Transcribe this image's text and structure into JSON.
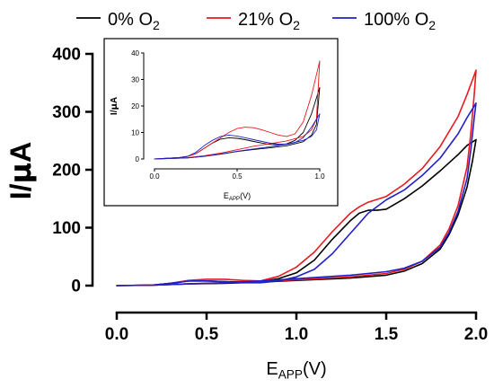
{
  "chart_data": [
    {
      "id": "main",
      "type": "line",
      "ylabel_main": "I/",
      "ylabel_mu": "μ",
      "ylabel_unit": "A",
      "xlabel_main": "E",
      "xlabel_sub": "APP",
      "xlabel_unit": "(V)",
      "xlim": [
        0,
        2.0
      ],
      "ylim": [
        0,
        400
      ],
      "xticks": [
        0.0,
        0.5,
        1.0,
        1.5,
        2.0
      ],
      "xtick_labels": [
        "0.0",
        "0.5",
        "1.0",
        "1.5",
        "2.0"
      ],
      "yticks": [
        0,
        100,
        200,
        300,
        400
      ],
      "ytick_labels": [
        "0",
        "100",
        "200",
        "300",
        "400"
      ],
      "grid": false,
      "legend_position": "top",
      "series": [
        {
          "legend_prefix": "0% O",
          "legend_sub": "2",
          "color": "#000000",
          "forward": [
            [
              0,
              0
            ],
            [
              0.2,
              1
            ],
            [
              0.3,
              4
            ],
            [
              0.4,
              8
            ],
            [
              0.5,
              8
            ],
            [
              0.6,
              7
            ],
            [
              0.7,
              6
            ],
            [
              0.8,
              7
            ],
            [
              0.9,
              12
            ],
            [
              1.0,
              22
            ],
            [
              1.1,
              44
            ],
            [
              1.2,
              80
            ],
            [
              1.3,
              112
            ],
            [
              1.35,
              125
            ],
            [
              1.4,
              130
            ],
            [
              1.45,
              130
            ],
            [
              1.5,
              132
            ],
            [
              1.6,
              150
            ],
            [
              1.7,
              172
            ],
            [
              1.8,
              198
            ],
            [
              1.9,
              226
            ],
            [
              1.95,
              242
            ],
            [
              2.0,
              252
            ]
          ],
          "reverse": [
            [
              2.0,
              252
            ],
            [
              1.98,
              215
            ],
            [
              1.95,
              170
            ],
            [
              1.9,
              122
            ],
            [
              1.85,
              88
            ],
            [
              1.8,
              63
            ],
            [
              1.7,
              38
            ],
            [
              1.6,
              25
            ],
            [
              1.5,
              18
            ],
            [
              1.3,
              13
            ],
            [
              1.0,
              9
            ],
            [
              0.8,
              6
            ],
            [
              0.6,
              4
            ],
            [
              0.4,
              3
            ],
            [
              0.2,
              1
            ],
            [
              0,
              0
            ]
          ]
        },
        {
          "legend_prefix": "21% O",
          "legend_sub": "2",
          "color": "#e8191f",
          "forward": [
            [
              0,
              0
            ],
            [
              0.2,
              1
            ],
            [
              0.3,
              4
            ],
            [
              0.4,
              9
            ],
            [
              0.5,
              11
            ],
            [
              0.6,
              11
            ],
            [
              0.7,
              9
            ],
            [
              0.8,
              8
            ],
            [
              0.9,
              16
            ],
            [
              1.0,
              32
            ],
            [
              1.1,
              58
            ],
            [
              1.2,
              93
            ],
            [
              1.3,
              125
            ],
            [
              1.35,
              136
            ],
            [
              1.4,
              144
            ],
            [
              1.5,
              154
            ],
            [
              1.6,
              175
            ],
            [
              1.7,
              202
            ],
            [
              1.8,
              240
            ],
            [
              1.9,
              292
            ],
            [
              1.95,
              330
            ],
            [
              1.98,
              355
            ],
            [
              2.0,
              372
            ]
          ],
          "reverse": [
            [
              2.0,
              372
            ],
            [
              1.99,
              330
            ],
            [
              1.97,
              260
            ],
            [
              1.95,
              205
            ],
            [
              1.9,
              138
            ],
            [
              1.85,
              98
            ],
            [
              1.8,
              70
            ],
            [
              1.7,
              42
            ],
            [
              1.6,
              28
            ],
            [
              1.5,
              21
            ],
            [
              1.3,
              15
            ],
            [
              1.0,
              10
            ],
            [
              0.8,
              7
            ],
            [
              0.6,
              5
            ],
            [
              0.4,
              3
            ],
            [
              0.2,
              1
            ],
            [
              0,
              0
            ]
          ]
        },
        {
          "legend_prefix": "100% O",
          "legend_sub": "2",
          "color": "#2020c8",
          "forward": [
            [
              0,
              0
            ],
            [
              0.2,
              1
            ],
            [
              0.3,
              4
            ],
            [
              0.4,
              8
            ],
            [
              0.5,
              8
            ],
            [
              0.6,
              7
            ],
            [
              0.7,
              5
            ],
            [
              0.8,
              5
            ],
            [
              0.9,
              8
            ],
            [
              1.0,
              15
            ],
            [
              1.1,
              28
            ],
            [
              1.2,
              55
            ],
            [
              1.3,
              90
            ],
            [
              1.4,
              125
            ],
            [
              1.5,
              148
            ],
            [
              1.6,
              165
            ],
            [
              1.7,
              190
            ],
            [
              1.8,
              220
            ],
            [
              1.9,
              262
            ],
            [
              1.95,
              290
            ],
            [
              2.0,
              315
            ]
          ],
          "reverse": [
            [
              2.0,
              315
            ],
            [
              1.99,
              290
            ],
            [
              1.97,
              232
            ],
            [
              1.95,
              185
            ],
            [
              1.9,
              128
            ],
            [
              1.85,
              92
            ],
            [
              1.8,
              66
            ],
            [
              1.7,
              42
            ],
            [
              1.6,
              30
            ],
            [
              1.5,
              24
            ],
            [
              1.3,
              18
            ],
            [
              1.0,
              12
            ],
            [
              0.8,
              8
            ],
            [
              0.6,
              5
            ],
            [
              0.4,
              3
            ],
            [
              0.2,
              1
            ],
            [
              0,
              0
            ]
          ]
        }
      ]
    },
    {
      "id": "inset",
      "type": "line",
      "ylabel_main": "I/",
      "ylabel_mu": "μ",
      "ylabel_unit": "A",
      "xlabel_main": "E",
      "xlabel_sub": "APP",
      "xlabel_unit": "(V)",
      "xlim": [
        0,
        1.0
      ],
      "ylim": [
        0,
        40
      ],
      "xticks": [
        0.0,
        0.5,
        1.0
      ],
      "xtick_labels": [
        "0.0",
        "0.5",
        "1.0"
      ],
      "yticks": [
        0,
        10,
        20,
        30,
        40
      ],
      "ytick_labels": [
        "0",
        "10",
        "20",
        "30",
        "40"
      ],
      "grid": false,
      "series": [
        {
          "color": "#000000",
          "forward": [
            [
              0,
              0
            ],
            [
              0.15,
              0.5
            ],
            [
              0.2,
              1
            ],
            [
              0.25,
              2
            ],
            [
              0.3,
              4
            ],
            [
              0.35,
              6
            ],
            [
              0.4,
              7.5
            ],
            [
              0.45,
              8
            ],
            [
              0.5,
              7.8
            ],
            [
              0.55,
              7.3
            ],
            [
              0.6,
              6.6
            ],
            [
              0.65,
              6
            ],
            [
              0.7,
              5.5
            ],
            [
              0.75,
              5.4
            ],
            [
              0.8,
              5.7
            ],
            [
              0.85,
              7
            ],
            [
              0.9,
              10
            ],
            [
              0.95,
              17
            ],
            [
              1.0,
              27
            ]
          ],
          "reverse": [
            [
              1.0,
              27
            ],
            [
              0.98,
              13
            ],
            [
              0.95,
              9
            ],
            [
              0.9,
              6.5
            ],
            [
              0.8,
              5
            ],
            [
              0.7,
              4.2
            ],
            [
              0.6,
              3.6
            ],
            [
              0.5,
              2.8
            ],
            [
              0.4,
              1.8
            ],
            [
              0.3,
              1
            ],
            [
              0.2,
              0.4
            ],
            [
              0,
              0
            ]
          ]
        },
        {
          "color": "#e8191f",
          "forward": [
            [
              0,
              0
            ],
            [
              0.15,
              0.5
            ],
            [
              0.2,
              1
            ],
            [
              0.25,
              2
            ],
            [
              0.3,
              4
            ],
            [
              0.35,
              6
            ],
            [
              0.4,
              8
            ],
            [
              0.45,
              10
            ],
            [
              0.5,
              11.5
            ],
            [
              0.55,
              12
            ],
            [
              0.6,
              11.8
            ],
            [
              0.65,
              11
            ],
            [
              0.7,
              10
            ],
            [
              0.75,
              9
            ],
            [
              0.8,
              8.5
            ],
            [
              0.85,
              9.5
            ],
            [
              0.9,
              14
            ],
            [
              0.95,
              24
            ],
            [
              1.0,
              37
            ]
          ],
          "reverse": [
            [
              1.0,
              37
            ],
            [
              0.98,
              15
            ],
            [
              0.95,
              11
            ],
            [
              0.9,
              8.5
            ],
            [
              0.8,
              6.8
            ],
            [
              0.7,
              5.8
            ],
            [
              0.6,
              4.8
            ],
            [
              0.5,
              3.5
            ],
            [
              0.4,
              2.2
            ],
            [
              0.3,
              1.2
            ],
            [
              0.2,
              0.5
            ],
            [
              0,
              0
            ]
          ]
        },
        {
          "color": "#2020c8",
          "forward": [
            [
              0,
              0
            ],
            [
              0.15,
              0.5
            ],
            [
              0.2,
              1
            ],
            [
              0.25,
              2.5
            ],
            [
              0.3,
              5
            ],
            [
              0.35,
              7
            ],
            [
              0.4,
              8.5
            ],
            [
              0.45,
              9
            ],
            [
              0.5,
              8.6
            ],
            [
              0.55,
              8
            ],
            [
              0.6,
              7.3
            ],
            [
              0.65,
              6.6
            ],
            [
              0.7,
              6
            ],
            [
              0.75,
              5.6
            ],
            [
              0.8,
              5.5
            ],
            [
              0.85,
              6.2
            ],
            [
              0.9,
              8
            ],
            [
              0.95,
              12
            ],
            [
              1.0,
              17
            ]
          ],
          "reverse": [
            [
              1.0,
              17
            ],
            [
              0.98,
              11
            ],
            [
              0.95,
              8.5
            ],
            [
              0.9,
              7
            ],
            [
              0.8,
              5.6
            ],
            [
              0.7,
              4.6
            ],
            [
              0.6,
              3.8
            ],
            [
              0.5,
              2.9
            ],
            [
              0.4,
              1.9
            ],
            [
              0.3,
              1
            ],
            [
              0.2,
              0.4
            ],
            [
              0,
              0
            ]
          ]
        }
      ]
    }
  ]
}
